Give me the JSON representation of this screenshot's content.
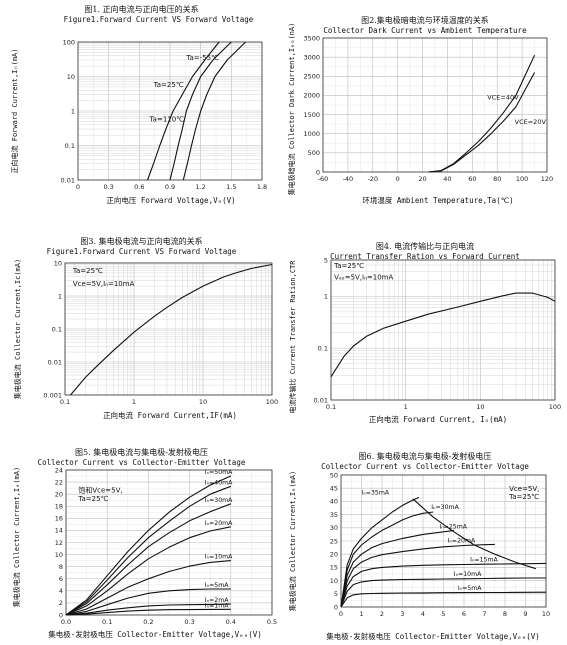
{
  "chart_data": [
    {
      "id": "fig1",
      "type": "line",
      "title": "图1. 正向电流与正向电压的关系",
      "subtitle": "Figure1.Forward Current VS Forward Voltage",
      "xlabel": "正向电压 Forward Voltage,Vₙ(V)",
      "ylabel": "正向电流 Forward Current,Iₙ(mA)",
      "xscale": "linear",
      "yscale": "log",
      "xlim": [
        0,
        1.8
      ],
      "ylim": [
        0.01,
        100
      ],
      "xticks": [
        0,
        0.3,
        0.6,
        0.9,
        1.2,
        1.5,
        1.8
      ],
      "xtick_labels": [
        "0",
        "0.3",
        "0.6",
        "0.9",
        "1.2",
        "1.5",
        "1.8"
      ],
      "yticks": [
        0.01,
        0.1,
        1,
        10,
        100
      ],
      "ytick_labels": [
        "0.01",
        "0.1",
        "1",
        "10",
        "100"
      ],
      "grid": true,
      "series": [
        {
          "name": "Ta=110℃",
          "x": [
            0.68,
            0.74,
            0.8,
            0.86,
            0.93,
            1.02,
            1.12,
            1.24,
            1.38
          ],
          "y": [
            0.01,
            0.03,
            0.1,
            0.3,
            1,
            3,
            10,
            30,
            100
          ]
        },
        {
          "name": "Ta=25℃",
          "x": [
            0.9,
            0.94,
            0.98,
            1.02,
            1.06,
            1.12,
            1.2,
            1.32,
            1.5
          ],
          "y": [
            0.01,
            0.03,
            0.1,
            0.3,
            1,
            3,
            10,
            30,
            100
          ]
        },
        {
          "name": "Ta=-55℃",
          "x": [
            1.03,
            1.07,
            1.11,
            1.15,
            1.2,
            1.26,
            1.34,
            1.46,
            1.64
          ],
          "y": [
            0.01,
            0.03,
            0.1,
            0.3,
            1,
            3,
            10,
            30,
            100
          ]
        }
      ],
      "annotations": [
        {
          "text": "Ta=-55℃",
          "x": 1.06,
          "y": 30
        },
        {
          "text": "Ta=25℃",
          "x": 0.74,
          "y": 5
        },
        {
          "text": "Ta=110℃",
          "x": 0.7,
          "y": 0.5
        }
      ]
    },
    {
      "id": "fig2",
      "type": "line",
      "title": "图2.集电极暗电流与环境温度的关系",
      "subtitle": "Collector Dark Current vs Ambient Temperature",
      "xlabel": "环境温度 Ambient Temperature,Ta(℃)",
      "ylabel": "集电极暗电流 Collector Dark Current,Iₑₒ(nA)",
      "xscale": "linear",
      "yscale": "linear",
      "xlim": [
        -60,
        120
      ],
      "ylim": [
        0,
        3500
      ],
      "xticks": [
        -60,
        -40,
        -20,
        0,
        20,
        40,
        60,
        80,
        100,
        120
      ],
      "xtick_labels": [
        "-60",
        "-40",
        "-20",
        "0",
        "20",
        "40",
        "60",
        "80",
        "100",
        "120"
      ],
      "yticks": [
        0,
        500,
        1000,
        1500,
        2000,
        2500,
        3000,
        3500
      ],
      "ytick_labels": [
        "0",
        "500",
        "1000",
        "1500",
        "2000",
        "2500",
        "3000",
        "3500"
      ],
      "grid": true,
      "series": [
        {
          "name": "V_CE=40V",
          "x": [
            25,
            35,
            45,
            55,
            65,
            75,
            85,
            95,
            105,
            110
          ],
          "y": [
            0,
            40,
            220,
            500,
            800,
            1150,
            1550,
            2000,
            2700,
            3050
          ]
        },
        {
          "name": "V_CE=20V",
          "x": [
            25,
            35,
            45,
            55,
            65,
            75,
            85,
            95,
            105,
            110
          ],
          "y": [
            0,
            30,
            200,
            450,
            700,
            1000,
            1330,
            1700,
            2300,
            2600
          ]
        }
      ],
      "annotations": [
        {
          "text": "VCE=40V",
          "x": 72,
          "y": 1900
        },
        {
          "text": "VCE=20V",
          "x": 94,
          "y": 1250
        }
      ]
    },
    {
      "id": "fig3",
      "type": "line",
      "title": "图3. 集电极电流与正向电流的关系",
      "subtitle": "Figure1.Forward Current VS Forward Voltage",
      "xlabel": "正向电流 Forward Current,IF(mA)",
      "ylabel": "集电极电流 Collector Current,Ic(mA)",
      "xscale": "log",
      "yscale": "log",
      "xlim": [
        0.1,
        100
      ],
      "ylim": [
        0.001,
        10
      ],
      "xticks": [
        0.1,
        1,
        10,
        100
      ],
      "xtick_labels": [
        "0.1",
        "1",
        "10",
        "100"
      ],
      "yticks": [
        0.001,
        0.01,
        0.1,
        1,
        10
      ],
      "ytick_labels": [
        "0.001",
        "0.01",
        "0.1",
        "1",
        "10"
      ],
      "grid": true,
      "series": [
        {
          "name": "Ic",
          "x": [
            0.12,
            0.2,
            0.3,
            0.5,
            1,
            2,
            3,
            5,
            10,
            20,
            30,
            50,
            100
          ],
          "y": [
            0.001,
            0.0035,
            0.008,
            0.022,
            0.08,
            0.25,
            0.45,
            0.9,
            2.0,
            3.8,
            5.0,
            6.8,
            9.0
          ]
        }
      ],
      "annotations": [
        {
          "text": "Ta=25℃",
          "x": 0.13,
          "y": 5
        },
        {
          "text": "Vce=5V,Iₙ=10mA",
          "x": 0.13,
          "y": 2
        }
      ]
    },
    {
      "id": "fig4",
      "type": "line",
      "title": "图4. 电流传输比与正向电流",
      "subtitle": "Current Transfer Ration vs Forward Current",
      "xlabel": "正向电流 Forward Current, Iₙ(mA)",
      "ylabel": "电流传输比 Current Transfer Ration,CTR",
      "xscale": "log",
      "yscale": "log",
      "xlim": [
        0.1,
        100
      ],
      "ylim": [
        0.01,
        5
      ],
      "xticks": [
        0.1,
        1,
        10,
        100
      ],
      "xtick_labels": [
        "0.1",
        "1",
        "10",
        "100"
      ],
      "yticks": [
        0.01,
        0.1,
        1,
        5
      ],
      "ytick_labels": [
        "0.01",
        "0.1",
        "1",
        "5"
      ],
      "grid": true,
      "series": [
        {
          "name": "CTR",
          "x": [
            0.1,
            0.15,
            0.2,
            0.3,
            0.5,
            1,
            2,
            5,
            10,
            20,
            30,
            50,
            80,
            100
          ],
          "y": [
            0.028,
            0.07,
            0.11,
            0.17,
            0.24,
            0.33,
            0.45,
            0.62,
            0.8,
            1.02,
            1.15,
            1.15,
            0.95,
            0.8
          ]
        }
      ],
      "annotations": [
        {
          "text": "Ta=25℃",
          "x": 0.11,
          "y": 3.5
        },
        {
          "text": "Vₑₑ=5V,Iₙ=10mA",
          "x": 0.11,
          "y": 2.1
        }
      ]
    },
    {
      "id": "fig5",
      "type": "line",
      "title": "图5. 集电极电流与集电极-发射极电压",
      "subtitle": "Collector Current vs Collector-Emitter Voltage",
      "xlabel": "集电极-发射极电压 Collector-Emitter Voltage,Vₑₑ(V)",
      "ylabel": "集电极电流 Collector Current,Iₑ(mA)",
      "xscale": "linear",
      "yscale": "linear",
      "xlim": [
        0,
        0.5
      ],
      "ylim": [
        0,
        24
      ],
      "xticks": [
        0,
        0.1,
        0.2,
        0.3,
        0.4,
        0.5
      ],
      "xtick_labels": [
        "0.0",
        "0.1",
        "0.2",
        "0.3",
        "0.4",
        "0.5"
      ],
      "yticks": [
        0,
        2,
        4,
        6,
        8,
        10,
        12,
        14,
        16,
        18,
        20,
        22,
        24
      ],
      "ytick_labels": [
        "0",
        "2",
        "4",
        "6",
        "8",
        "10",
        "12",
        "14",
        "16",
        "18",
        "20",
        "22",
        "24"
      ],
      "grid": true,
      "series": [
        {
          "name": "Iₙ=50mA",
          "x": [
            0,
            0.05,
            0.1,
            0.15,
            0.2,
            0.25,
            0.3,
            0.35,
            0.4
          ],
          "y": [
            0,
            2.5,
            6.5,
            10.5,
            14,
            17,
            19.5,
            21.5,
            23
          ]
        },
        {
          "name": "Iₙ=40mA",
          "x": [
            0,
            0.05,
            0.1,
            0.15,
            0.2,
            0.25,
            0.3,
            0.35,
            0.4
          ],
          "y": [
            0,
            2.2,
            5.8,
            9.5,
            12.8,
            15.5,
            18,
            20,
            21.3
          ]
        },
        {
          "name": "Iₙ=30mA",
          "x": [
            0,
            0.05,
            0.1,
            0.15,
            0.2,
            0.25,
            0.3,
            0.35,
            0.4
          ],
          "y": [
            0,
            1.9,
            5,
            8.3,
            11.3,
            13.6,
            15.6,
            17.1,
            18.4
          ]
        },
        {
          "name": "Iₙ=20mA",
          "x": [
            0,
            0.05,
            0.1,
            0.15,
            0.2,
            0.25,
            0.3,
            0.35,
            0.4
          ],
          "y": [
            0,
            1.5,
            4,
            6.8,
            9.3,
            11.2,
            12.8,
            13.9,
            14.6
          ]
        },
        {
          "name": "Iₙ=10mA",
          "x": [
            0,
            0.05,
            0.1,
            0.15,
            0.2,
            0.25,
            0.3,
            0.35,
            0.4
          ],
          "y": [
            0,
            1,
            2.8,
            4.6,
            6,
            7.2,
            8.1,
            8.7,
            9.0
          ]
        },
        {
          "name": "Iₙ=5mA",
          "x": [
            0,
            0.05,
            0.1,
            0.15,
            0.2,
            0.25,
            0.3,
            0.35,
            0.4
          ],
          "y": [
            0,
            0.6,
            1.7,
            2.8,
            3.6,
            4.0,
            4.2,
            4.3,
            4.3
          ]
        },
        {
          "name": "Iₙ=2mA",
          "x": [
            0,
            0.05,
            0.1,
            0.15,
            0.2,
            0.25,
            0.3,
            0.35,
            0.4
          ],
          "y": [
            0,
            0.3,
            0.8,
            1.2,
            1.5,
            1.65,
            1.7,
            1.75,
            1.8
          ]
        },
        {
          "name": "Iₙ=1mA",
          "x": [
            0,
            0.05,
            0.1,
            0.15,
            0.2,
            0.25,
            0.3,
            0.35,
            0.4
          ],
          "y": [
            0,
            0.15,
            0.4,
            0.65,
            0.8,
            0.88,
            0.9,
            0.92,
            0.95
          ]
        }
      ],
      "annotations": [
        {
          "text": "饱和Vce=5V,",
          "x": 0.03,
          "y": 20.3
        },
        {
          "text": "Ta=25℃",
          "x": 0.03,
          "y": 18.9
        }
      ]
    },
    {
      "id": "fig6",
      "type": "line",
      "title": "图6. 集电极电流与集电极-发射极电压",
      "subtitle": "Collector Current vs Collector-Emitter Voltage",
      "xlabel": "集电极-发射极电压 Collector-Emitter Voltage,Vₑₑ(V)",
      "ylabel": "集电极电流 Collector Current,Iₑ(mA)",
      "xscale": "linear",
      "yscale": "linear",
      "xlim": [
        0,
        10
      ],
      "ylim": [
        0,
        50
      ],
      "xticks": [
        0,
        1,
        2,
        3,
        4,
        5,
        6,
        7,
        8,
        9,
        10
      ],
      "xtick_labels": [
        "0",
        "1",
        "2",
        "3",
        "4",
        "5",
        "6",
        "7",
        "8",
        "9",
        "10"
      ],
      "yticks": [
        0,
        5,
        10,
        15,
        20,
        25,
        30,
        35,
        40,
        45,
        50
      ],
      "ytick_labels": [
        "0",
        "5",
        "10",
        "15",
        "20",
        "25",
        "30",
        "35",
        "40",
        "45",
        "50"
      ],
      "grid": true,
      "series": [
        {
          "name": "Iₙ=35mA",
          "x": [
            0,
            0.3,
            0.6,
            1,
            1.5,
            2,
            2.5,
            3,
            3.5,
            3.8
          ],
          "y": [
            0,
            16,
            22,
            26,
            30,
            33,
            36,
            38.5,
            40.5,
            41.5
          ]
        },
        {
          "name": "Iₙ=30mA",
          "x": [
            0,
            0.3,
            0.6,
            1,
            1.5,
            2,
            2.5,
            3,
            3.5,
            4,
            4.5
          ],
          "y": [
            0,
            14,
            20,
            23.5,
            26.5,
            29,
            31,
            33,
            34.5,
            35.5,
            36
          ]
        },
        {
          "name": "Iₙ=25mA",
          "x": [
            0,
            0.3,
            0.6,
            1,
            1.5,
            2,
            3,
            4,
            5,
            5.5
          ],
          "y": [
            0,
            12,
            17,
            20,
            22.5,
            24,
            26,
            27.5,
            28.5,
            29
          ]
        },
        {
          "name": "Iₙ=20mA",
          "x": [
            0,
            0.3,
            0.6,
            1,
            1.5,
            2,
            3,
            4,
            5,
            6,
            7,
            7.5
          ],
          "y": [
            0,
            10,
            14.5,
            17,
            18.8,
            19.8,
            21,
            22,
            22.8,
            23.3,
            23.6,
            23.7
          ]
        },
        {
          "name": "Iₙ=15mA",
          "x": [
            0,
            0.3,
            0.6,
            1,
            1.5,
            2,
            3,
            4,
            5,
            6,
            7,
            8,
            9,
            10
          ],
          "y": [
            0,
            8,
            11.5,
            13.5,
            14.5,
            15,
            15.5,
            15.8,
            16,
            16.1,
            16.2,
            16.3,
            16.4,
            16.5
          ]
        },
        {
          "name": "Iₙ=10mA",
          "x": [
            0,
            0.3,
            0.6,
            1,
            1.5,
            2,
            3,
            4,
            5,
            6,
            7,
            8,
            9,
            10
          ],
          "y": [
            0,
            6,
            8.5,
            9.5,
            10,
            10.2,
            10.4,
            10.5,
            10.6,
            10.7,
            10.8,
            10.9,
            11,
            11
          ]
        },
        {
          "name": "Iₙ=5mA",
          "x": [
            0,
            0.3,
            0.6,
            1,
            1.5,
            2,
            3,
            4,
            5,
            6,
            7,
            8,
            9,
            10
          ],
          "y": [
            0,
            3.5,
            4.6,
            5,
            5.1,
            5.2,
            5.3,
            5.35,
            5.4,
            5.45,
            5.5,
            5.5,
            5.55,
            5.6
          ]
        },
        {
          "name": "limit",
          "x": [
            3.5,
            4.5,
            5.5,
            6.5,
            7.5,
            8.5,
            9.5
          ],
          "y": [
            41,
            34,
            28.5,
            23.5,
            20,
            17,
            14.5
          ]
        }
      ],
      "annotations": [
        {
          "text": "Vce=5V,",
          "x": 8.2,
          "y": 44
        },
        {
          "text": "Ta=25℃",
          "x": 8.2,
          "y": 41
        }
      ]
    }
  ]
}
